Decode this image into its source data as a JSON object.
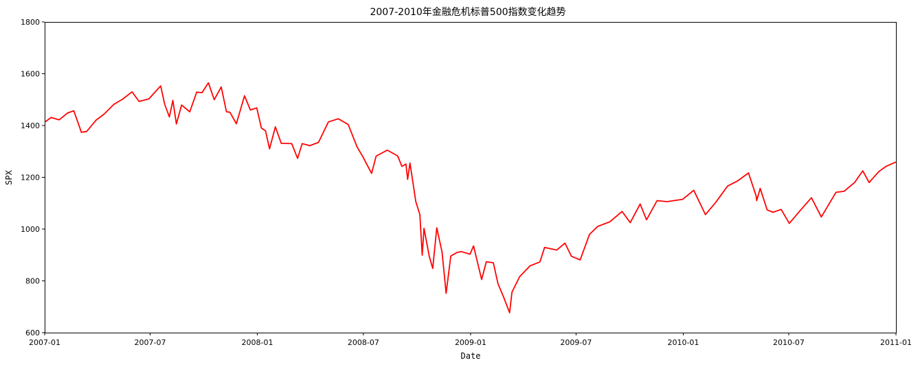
{
  "chart_data": {
    "type": "line",
    "title": "2007-2010年金融危机标普500指数变化趋势",
    "xlabel": "Date",
    "ylabel": "SPX",
    "xlim": [
      "2007-01",
      "2011-01"
    ],
    "ylim": [
      600,
      1800
    ],
    "x_ticks": [
      "2007-01",
      "2007-07",
      "2008-01",
      "2008-07",
      "2009-01",
      "2009-07",
      "2010-01",
      "2010-07",
      "2011-01"
    ],
    "y_ticks": [
      600,
      800,
      1000,
      1200,
      1400,
      1600,
      1800
    ],
    "grid": false,
    "legend": "none",
    "colors": {
      "line": "#ff0000",
      "axes": "#000000",
      "background": "#ffffff"
    },
    "series": [
      {
        "x": [
          "2007-01-03",
          "2007-01-12",
          "2007-01-26",
          "2007-02-09",
          "2007-02-20",
          "2007-02-28",
          "2007-03-05",
          "2007-03-14",
          "2007-03-30",
          "2007-04-13",
          "2007-04-30",
          "2007-05-15",
          "2007-05-31",
          "2007-06-12",
          "2007-06-29",
          "2007-07-19",
          "2007-07-26",
          "2007-08-03",
          "2007-08-09",
          "2007-08-15",
          "2007-08-24",
          "2007-09-07",
          "2007-09-19",
          "2007-09-28",
          "2007-10-09",
          "2007-10-19",
          "2007-10-31",
          "2007-11-09",
          "2007-11-15",
          "2007-11-26",
          "2007-12-10",
          "2007-12-20",
          "2007-12-31",
          "2008-01-08",
          "2008-01-15",
          "2008-01-22",
          "2008-02-01",
          "2008-02-11",
          "2008-02-29",
          "2008-03-10",
          "2008-03-18",
          "2008-03-31",
          "2008-04-15",
          "2008-05-02",
          "2008-05-19",
          "2008-06-05",
          "2008-06-20",
          "2008-06-30",
          "2008-07-15",
          "2008-07-23",
          "2008-08-11",
          "2008-08-29",
          "2008-09-05",
          "2008-09-12",
          "2008-09-15",
          "2008-09-19",
          "2008-09-29",
          "2008-10-06",
          "2008-10-10",
          "2008-10-13",
          "2008-10-22",
          "2008-10-28",
          "2008-11-04",
          "2008-11-13",
          "2008-11-20",
          "2008-11-28",
          "2008-12-08",
          "2008-12-16",
          "2008-12-31",
          "2009-01-06",
          "2009-01-20",
          "2009-01-28",
          "2009-02-09",
          "2009-02-17",
          "2009-02-27",
          "2009-03-09",
          "2009-03-13",
          "2009-03-26",
          "2009-04-13",
          "2009-04-30",
          "2009-05-08",
          "2009-05-29",
          "2009-06-12",
          "2009-06-23",
          "2009-07-08",
          "2009-07-24",
          "2009-08-07",
          "2009-08-28",
          "2009-09-18",
          "2009-10-02",
          "2009-10-19",
          "2009-10-30",
          "2009-11-17",
          "2009-12-04",
          "2009-12-31",
          "2010-01-19",
          "2010-02-08",
          "2010-02-26",
          "2010-03-18",
          "2010-04-05",
          "2010-04-23",
          "2010-05-06",
          "2010-05-07",
          "2010-05-13",
          "2010-05-25",
          "2010-06-04",
          "2010-06-18",
          "2010-07-02",
          "2010-07-20",
          "2010-08-09",
          "2010-08-26",
          "2010-09-20",
          "2010-10-04",
          "2010-10-22",
          "2010-11-05",
          "2010-11-16",
          "2010-12-03",
          "2010-12-15",
          "2010-12-31"
        ],
        "values": [
          1416,
          1431,
          1422,
          1448,
          1457,
          1406,
          1374,
          1377,
          1420,
          1444,
          1482,
          1502,
          1530,
          1493,
          1503,
          1553,
          1482,
          1433,
          1497,
          1406,
          1479,
          1453,
          1529,
          1527,
          1565,
          1500,
          1549,
          1453,
          1451,
          1407,
          1515,
          1460,
          1468,
          1390,
          1380,
          1310,
          1395,
          1331,
          1330,
          1273,
          1330,
          1322,
          1335,
          1414,
          1426,
          1404,
          1318,
          1280,
          1215,
          1282,
          1305,
          1282,
          1242,
          1251,
          1192,
          1255,
          1106,
          1056,
          899,
          1003,
          896,
          848,
          1005,
          911,
          752,
          896,
          909,
          913,
          903,
          935,
          805,
          874,
          870,
          789,
          735,
          677,
          756,
          816,
          858,
          873,
          929,
          919,
          946,
          895,
          881,
          979,
          1010,
          1028,
          1068,
          1025,
          1097,
          1036,
          1110,
          1106,
          1115,
          1150,
          1056,
          1104,
          1166,
          1187,
          1217,
          1128,
          1110,
          1157,
          1074,
          1065,
          1076,
          1022,
          1070,
          1121,
          1047,
          1142,
          1146,
          1180,
          1225,
          1180,
          1223,
          1242,
          1258
        ]
      }
    ]
  }
}
